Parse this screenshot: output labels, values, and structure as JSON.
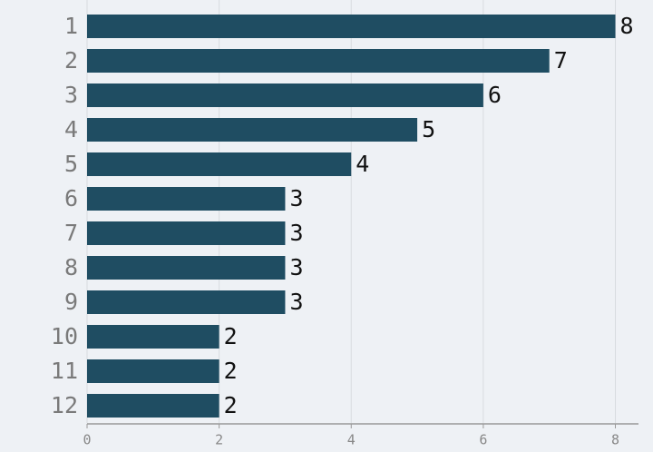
{
  "chart_data": {
    "type": "bar",
    "orientation": "horizontal",
    "categories": [
      "1",
      "2",
      "3",
      "4",
      "5",
      "6",
      "7",
      "8",
      "9",
      "10",
      "11",
      "12"
    ],
    "values": [
      8,
      7,
      6,
      5,
      4,
      3,
      3,
      3,
      3,
      2,
      2,
      2
    ],
    "color": "#1f4d62",
    "xlim": [
      0,
      8.35
    ],
    "xticks": [
      0,
      2,
      4,
      6,
      8
    ],
    "grid": true
  }
}
